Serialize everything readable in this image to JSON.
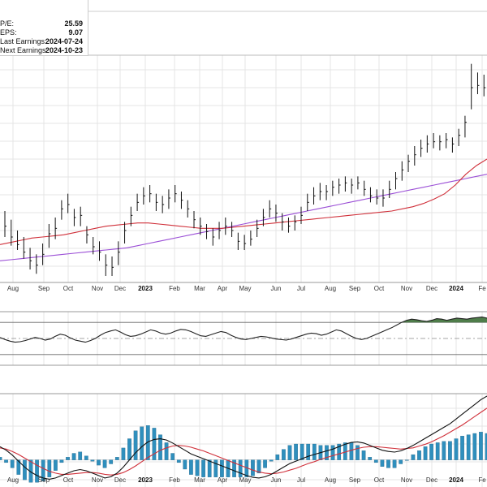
{
  "info": [
    {
      "label": "P/E:",
      "value": "25.59"
    },
    {
      "label": "EPS:",
      "value": "9.07"
    },
    {
      "label": "Last Earnings:",
      "value": "2024-07-24"
    },
    {
      "label": "Next Earnings:",
      "value": "2024-10-23"
    }
  ],
  "chart_data": {
    "type": "line",
    "title": "",
    "x_ticks": [
      "Aug",
      "Sep",
      "Oct",
      "Nov",
      "Dec",
      "2023",
      "Feb",
      "Mar",
      "Apr",
      "May",
      "Jun",
      "Jul",
      "Aug",
      "Sep",
      "Oct",
      "Nov",
      "Dec",
      "2024",
      "Fe"
    ],
    "bold_ticks": [
      "2023",
      "2024"
    ],
    "price_bars": [
      {
        "h": 336,
        "l": 312,
        "c": 322
      },
      {
        "h": 328,
        "l": 304,
        "c": 312
      },
      {
        "h": 318,
        "l": 300,
        "c": 305
      },
      {
        "h": 312,
        "l": 292,
        "c": 298
      },
      {
        "h": 302,
        "l": 282,
        "c": 290
      },
      {
        "h": 296,
        "l": 278,
        "c": 286
      },
      {
        "h": 306,
        "l": 286,
        "c": 296
      },
      {
        "h": 324,
        "l": 302,
        "c": 315
      },
      {
        "h": 330,
        "l": 310,
        "c": 320
      },
      {
        "h": 346,
        "l": 328,
        "c": 338
      },
      {
        "h": 352,
        "l": 334,
        "c": 342
      },
      {
        "h": 338,
        "l": 322,
        "c": 330
      },
      {
        "h": 340,
        "l": 322,
        "c": 332
      },
      {
        "h": 322,
        "l": 306,
        "c": 314
      },
      {
        "h": 312,
        "l": 296,
        "c": 303
      },
      {
        "h": 308,
        "l": 290,
        "c": 298
      },
      {
        "h": 296,
        "l": 276,
        "c": 286
      },
      {
        "h": 294,
        "l": 276,
        "c": 284
      },
      {
        "h": 308,
        "l": 286,
        "c": 298
      },
      {
        "h": 326,
        "l": 306,
        "c": 318
      },
      {
        "h": 340,
        "l": 322,
        "c": 332
      },
      {
        "h": 352,
        "l": 336,
        "c": 344
      },
      {
        "h": 358,
        "l": 342,
        "c": 350
      },
      {
        "h": 360,
        "l": 344,
        "c": 352
      },
      {
        "h": 352,
        "l": 336,
        "c": 344
      },
      {
        "h": 350,
        "l": 334,
        "c": 342
      },
      {
        "h": 356,
        "l": 338,
        "c": 348
      },
      {
        "h": 360,
        "l": 344,
        "c": 352
      },
      {
        "h": 354,
        "l": 338,
        "c": 346
      },
      {
        "h": 346,
        "l": 330,
        "c": 338
      },
      {
        "h": 336,
        "l": 320,
        "c": 328
      },
      {
        "h": 330,
        "l": 314,
        "c": 322
      },
      {
        "h": 324,
        "l": 310,
        "c": 317
      },
      {
        "h": 320,
        "l": 304,
        "c": 312
      },
      {
        "h": 326,
        "l": 310,
        "c": 318
      },
      {
        "h": 330,
        "l": 314,
        "c": 322
      },
      {
        "h": 326,
        "l": 312,
        "c": 318
      },
      {
        "h": 316,
        "l": 300,
        "c": 308
      },
      {
        "h": 314,
        "l": 300,
        "c": 306
      },
      {
        "h": 318,
        "l": 304,
        "c": 310
      },
      {
        "h": 328,
        "l": 312,
        "c": 320
      },
      {
        "h": 338,
        "l": 322,
        "c": 330
      },
      {
        "h": 346,
        "l": 330,
        "c": 338
      },
      {
        "h": 342,
        "l": 326,
        "c": 334
      },
      {
        "h": 334,
        "l": 318,
        "c": 326
      },
      {
        "h": 330,
        "l": 316,
        "c": 322
      },
      {
        "h": 332,
        "l": 318,
        "c": 326
      },
      {
        "h": 340,
        "l": 324,
        "c": 332
      },
      {
        "h": 352,
        "l": 336,
        "c": 344
      },
      {
        "h": 358,
        "l": 342,
        "c": 350
      },
      {
        "h": 362,
        "l": 346,
        "c": 354
      },
      {
        "h": 360,
        "l": 346,
        "c": 354
      },
      {
        "h": 364,
        "l": 350,
        "c": 358
      },
      {
        "h": 366,
        "l": 352,
        "c": 360
      },
      {
        "h": 368,
        "l": 354,
        "c": 362
      },
      {
        "h": 366,
        "l": 352,
        "c": 360
      },
      {
        "h": 368,
        "l": 356,
        "c": 362
      },
      {
        "h": 364,
        "l": 350,
        "c": 356
      },
      {
        "h": 358,
        "l": 344,
        "c": 350
      },
      {
        "h": 356,
        "l": 342,
        "c": 348
      },
      {
        "h": 356,
        "l": 340,
        "c": 348
      },
      {
        "h": 364,
        "l": 348,
        "c": 356
      },
      {
        "h": 372,
        "l": 356,
        "c": 366
      },
      {
        "h": 382,
        "l": 364,
        "c": 374
      },
      {
        "h": 388,
        "l": 372,
        "c": 382
      },
      {
        "h": 396,
        "l": 378,
        "c": 388
      },
      {
        "h": 402,
        "l": 386,
        "c": 394
      },
      {
        "h": 406,
        "l": 390,
        "c": 398
      },
      {
        "h": 408,
        "l": 394,
        "c": 400
      },
      {
        "h": 406,
        "l": 392,
        "c": 400
      },
      {
        "h": 408,
        "l": 394,
        "c": 402
      },
      {
        "h": 404,
        "l": 390,
        "c": 398
      },
      {
        "h": 412,
        "l": 396,
        "c": 406
      },
      {
        "h": 424,
        "l": 404,
        "c": 418
      },
      {
        "h": 472,
        "l": 430,
        "c": 450
      },
      {
        "h": 464,
        "l": 444,
        "c": 452
      },
      {
        "h": 462,
        "l": 442,
        "c": 450
      }
    ],
    "ma_fast": [
      305,
      307,
      309,
      311,
      312,
      313,
      314,
      316,
      318,
      320,
      322,
      323,
      324,
      325,
      325,
      324,
      323,
      322,
      321,
      320,
      320,
      320,
      321,
      322,
      323,
      324,
      325,
      326,
      327,
      328,
      329,
      330,
      331,
      332,
      333,
      334,
      335,
      336,
      338,
      340,
      343,
      347,
      352,
      360,
      370,
      378,
      384
    ],
    "ma_slow": [
      290,
      291,
      292,
      293,
      294,
      295,
      296,
      297,
      298,
      299,
      300,
      301,
      302,
      304,
      306,
      308,
      310,
      312,
      314,
      316,
      318,
      320,
      322,
      324,
      326,
      328,
      330,
      332,
      334,
      336,
      338,
      340,
      342,
      344,
      346,
      348,
      350,
      352,
      354,
      356,
      358,
      360,
      362,
      364,
      366,
      368,
      370
    ],
    "oscillator": [
      52,
      48,
      45,
      43,
      44,
      46,
      49,
      52,
      50,
      47,
      49,
      54,
      58,
      56,
      51,
      47,
      45,
      43,
      46,
      50,
      56,
      61,
      64,
      66,
      62,
      57,
      54,
      55,
      58,
      62,
      66,
      64,
      60,
      58,
      60,
      64,
      67,
      66,
      63,
      59,
      55,
      54,
      57,
      60,
      63,
      61,
      56,
      52,
      49,
      48,
      50,
      52,
      54,
      53,
      51,
      49,
      48,
      47,
      49,
      52,
      55,
      58,
      60,
      59,
      56,
      58,
      62,
      66,
      64,
      59,
      54,
      50,
      48,
      50,
      54,
      58,
      62,
      66,
      70,
      75,
      80,
      84,
      86,
      85,
      83,
      82,
      84,
      87,
      86,
      84,
      86,
      88,
      87,
      86,
      88,
      89,
      90,
      88
    ],
    "osc_levels": {
      "upper": 80,
      "lower": 20,
      "mid": 50
    },
    "macd": [
      2.2,
      1.6,
      0.8,
      -0.2,
      -1.2,
      -2.0,
      -2.6,
      -3.0,
      -3.2,
      -3.0,
      -2.6,
      -2.2,
      -1.8,
      -1.6,
      -1.8,
      -2.2,
      -2.6,
      -3.0,
      -2.8,
      -2.2,
      -1.2,
      0.0,
      1.2,
      2.2,
      3.0,
      3.4,
      3.5,
      3.3,
      2.8,
      2.2,
      1.6,
      1.0,
      0.6,
      0.2,
      -0.2,
      -0.6,
      -1.0,
      -1.4,
      -1.8,
      -2.2,
      -2.6,
      -2.9,
      -3.0,
      -2.8,
      -2.4,
      -1.8,
      -1.2,
      -0.6,
      -0.2,
      0.2,
      0.6,
      0.9,
      1.2,
      1.5,
      1.8,
      2.2,
      2.6,
      2.9,
      3.0,
      2.8,
      2.4,
      2.0,
      1.6,
      1.4,
      1.3,
      1.5,
      1.9,
      2.4,
      3.0,
      3.6,
      4.2,
      4.8,
      5.4,
      6.0,
      6.8,
      7.6,
      8.4,
      9.2,
      10.0,
      10.6
    ],
    "macd_signal": [
      2.0,
      1.8,
      1.4,
      0.9,
      0.3,
      -0.3,
      -0.9,
      -1.4,
      -1.9,
      -2.2,
      -2.4,
      -2.4,
      -2.3,
      -2.2,
      -2.1,
      -2.1,
      -2.2,
      -2.4,
      -2.5,
      -2.4,
      -2.1,
      -1.6,
      -1.0,
      -0.3,
      0.4,
      1.0,
      1.6,
      2.0,
      2.3,
      2.4,
      2.3,
      2.1,
      1.8,
      1.5,
      1.1,
      0.7,
      0.3,
      -0.1,
      -0.5,
      -0.9,
      -1.3,
      -1.7,
      -2.0,
      -2.2,
      -2.3,
      -2.2,
      -2.0,
      -1.7,
      -1.4,
      -1.0,
      -0.6,
      -0.3,
      0.1,
      0.4,
      0.7,
      1.0,
      1.3,
      1.6,
      1.9,
      2.1,
      2.2,
      2.2,
      2.1,
      2.0,
      1.9,
      1.8,
      1.9,
      2.0,
      2.3,
      2.6,
      3.0,
      3.5,
      4.0,
      4.6,
      5.2,
      5.8,
      6.5,
      7.2,
      7.9,
      8.6
    ]
  }
}
